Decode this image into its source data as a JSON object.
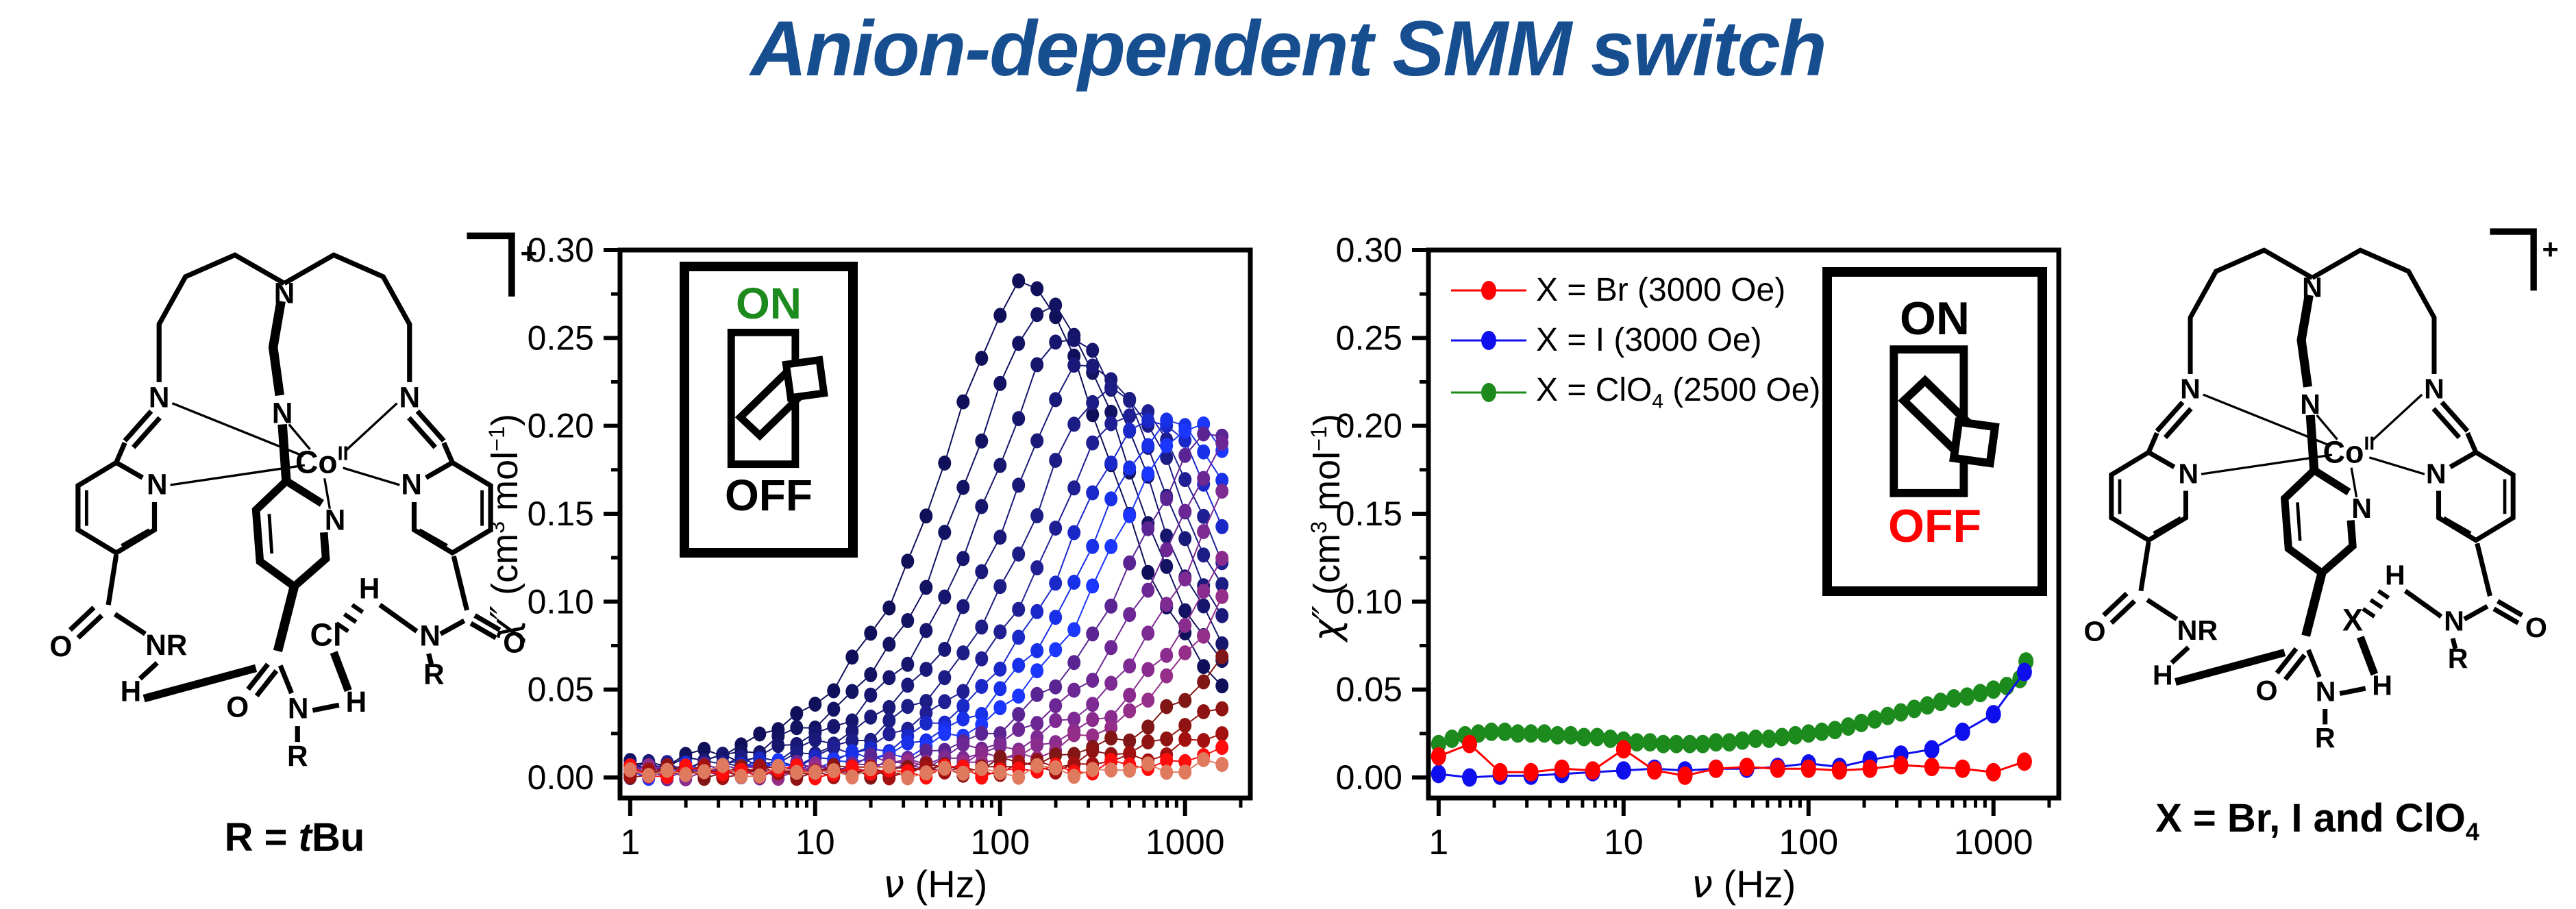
{
  "title": {
    "text": "Anion-dependent SMM switch",
    "color": "#164e90"
  },
  "axes": {
    "ylabel": {
      "chi": "χ″",
      "p1": " (cm",
      "sup1": "3",
      "p2": " mol",
      "sup2": "−1",
      "p3": ")"
    },
    "xlabel": {
      "nu": "ν",
      "rest": " (Hz)"
    },
    "yticks": [
      "0.00",
      "0.05",
      "0.10",
      "0.15",
      "0.20",
      "0.25",
      "0.30"
    ],
    "ytick_values": [
      0.0,
      0.05,
      0.1,
      0.15,
      0.2,
      0.25,
      0.3
    ],
    "xticks": [
      "1",
      "10",
      "100",
      "1000"
    ],
    "xtick_values": [
      1,
      10,
      100,
      1000
    ]
  },
  "chart_data": [
    {
      "type": "scatter-line",
      "title": "",
      "xlabel": "v (Hz)",
      "ylabel": "chi'' (cm3 mol-1)",
      "xscale": "log",
      "xlim": [
        1,
        1600
      ],
      "ylim": [
        -0.012,
        0.3
      ],
      "grid": false,
      "legend_position": "none",
      "points_per_decade": 10,
      "model": "y = 2*A*(x/f0)/(1+(x/f0)^2) + ~0.004 baseline scatter",
      "description": "Unlabeled multi-curve frequency sweep; peaks decrease in height and shift to higher frequency from navy through blue and purple to dark red; red and salmon curves stay near zero",
      "series": [
        {
          "color": "#10105a",
          "amplitude": 0.277,
          "peak_freq_hz": 140
        },
        {
          "color": "#131363",
          "amplitude": 0.263,
          "peak_freq_hz": 185
        },
        {
          "color": "#16166e",
          "amplitude": 0.248,
          "peak_freq_hz": 240
        },
        {
          "color": "#191979",
          "amplitude": 0.233,
          "peak_freq_hz": 310
        },
        {
          "color": "#1c1c85",
          "amplitude": 0.218,
          "peak_freq_hz": 400
        },
        {
          "color": "#1f1f93",
          "amplitude": 0.206,
          "peak_freq_hz": 515
        },
        {
          "color": "#1b28c8",
          "amplitude": 0.201,
          "peak_freq_hz": 660
        },
        {
          "color": "#1730e8",
          "amplitude": 0.198,
          "peak_freq_hz": 850
        },
        {
          "color": "#1b36ff",
          "amplitude": 0.196,
          "peak_freq_hz": 1100
        },
        {
          "color": "#5a2593",
          "amplitude": 0.193,
          "peak_freq_hz": 1500
        },
        {
          "color": "#6d2794",
          "amplitude": 0.191,
          "peak_freq_hz": 2100
        },
        {
          "color": "#7d2a92",
          "amplitude": 0.19,
          "peak_freq_hz": 3000
        },
        {
          "color": "#8a2c8e",
          "amplitude": 0.19,
          "peak_freq_hz": 4300
        },
        {
          "color": "#942e88",
          "amplitude": 0.19,
          "peak_freq_hz": 5600
        },
        {
          "color": "#801616",
          "amplitude": 0.19,
          "peak_freq_hz": 9000
        },
        {
          "color": "#8f1313",
          "amplitude": 0.19,
          "peak_freq_hz": 15000
        },
        {
          "color": "#a31010",
          "amplitude": 0.19,
          "peak_freq_hz": 26000
        },
        {
          "color": "#ff0c0c",
          "amplitude": 0.19,
          "peak_freq_hz": 55000
        },
        {
          "color": "#e07a5f",
          "amplitude": 0.19,
          "peak_freq_hz": 150000
        }
      ],
      "inset_switch": {
        "state": "ON",
        "on_label": "ON",
        "off_label": "OFF",
        "on_color": "#1d8a1d",
        "off_color": "#000000"
      }
    },
    {
      "type": "scatter-line",
      "title": "",
      "xlabel": "v (Hz)",
      "ylabel": "chi'' (cm3 mol-1)",
      "xscale": "log",
      "xlim": [
        1,
        1600
      ],
      "ylim": [
        -0.012,
        0.3
      ],
      "grid": false,
      "legend_position": "upper-left",
      "legend": [
        {
          "pre": "X = Br (3000 Oe)",
          "sub": "",
          "post": "",
          "color": "#ff0000"
        },
        {
          "pre": "X = I (3000 Oe)",
          "sub": "",
          "post": "",
          "color": "#0f0fee"
        },
        {
          "pre": "X = ClO",
          "sub": "4",
          "post": " (2500 Oe)",
          "color": "#1d8a1d"
        }
      ],
      "series": [
        {
          "name": "X = ClO4 (2500 Oe)",
          "color": "#1d8a1d",
          "x": [
            1.0,
            1.18,
            1.39,
            1.64,
            1.93,
            2.28,
            2.68,
            3.16,
            3.73,
            4.39,
            5.18,
            6.11,
            7.2,
            8.49,
            10,
            11.8,
            13.9,
            16.4,
            19.3,
            22.8,
            26.8,
            31.6,
            37.3,
            43.9,
            51.8,
            61.1,
            72,
            84.9,
            100,
            118,
            139,
            164,
            193,
            228,
            268,
            316,
            373,
            439,
            518,
            611,
            720,
            849,
            1000,
            1180,
            1390,
            1500
          ],
          "y": [
            0.019,
            0.022,
            0.024,
            0.025,
            0.026,
            0.026,
            0.025,
            0.025,
            0.025,
            0.024,
            0.024,
            0.023,
            0.023,
            0.022,
            0.021,
            0.02,
            0.02,
            0.019,
            0.019,
            0.019,
            0.019,
            0.02,
            0.02,
            0.021,
            0.022,
            0.022,
            0.023,
            0.024,
            0.025,
            0.026,
            0.027,
            0.029,
            0.031,
            0.033,
            0.035,
            0.037,
            0.039,
            0.041,
            0.043,
            0.045,
            0.046,
            0.048,
            0.05,
            0.052,
            0.056,
            0.066
          ]
        },
        {
          "name": "X = I (3000 Oe)",
          "color": "#0f0fee",
          "x": [
            1,
            1.47,
            2.15,
            3.16,
            4.64,
            6.81,
            10,
            14.7,
            21.5,
            31.6,
            46.4,
            68.1,
            100,
            147,
            215,
            316,
            464,
            681,
            1000,
            1470
          ],
          "y": [
            0.002,
            0.0,
            0.001,
            0.001,
            0.002,
            0.003,
            0.004,
            0.005,
            0.004,
            0.005,
            0.005,
            0.006,
            0.008,
            0.006,
            0.01,
            0.013,
            0.016,
            0.026,
            0.036,
            0.06
          ]
        },
        {
          "name": "X = Br (3000 Oe)",
          "color": "#ff0000",
          "x": [
            1,
            1.47,
            2.15,
            3.16,
            4.64,
            6.81,
            10,
            14.7,
            21.5,
            31.6,
            46.4,
            68.1,
            100,
            147,
            215,
            316,
            464,
            681,
            1000,
            1470
          ],
          "y": [
            0.012,
            0.019,
            0.003,
            0.003,
            0.005,
            0.004,
            0.016,
            0.004,
            0.001,
            0.005,
            0.006,
            0.005,
            0.005,
            0.004,
            0.005,
            0.007,
            0.006,
            0.005,
            0.003,
            0.009
          ]
        }
      ],
      "inset_switch": {
        "state": "OFF",
        "on_label": "ON",
        "off_label": "OFF",
        "on_color": "#000000",
        "off_color": "#ff0000"
      }
    }
  ],
  "structures": {
    "atom_labels": {
      "N": "N",
      "Co": "Co",
      "oxidation": "II",
      "O": "O",
      "H": "H",
      "R": "R",
      "NR": "NR",
      "plus": "+"
    },
    "left": {
      "anion": "Cl",
      "caption_pre": "R = ",
      "caption_italic": "t",
      "caption_post": "Bu"
    },
    "right": {
      "anion": "X",
      "caption_pre": "X = Br, I and ClO",
      "caption_sub": "4",
      "caption_post": ""
    }
  }
}
